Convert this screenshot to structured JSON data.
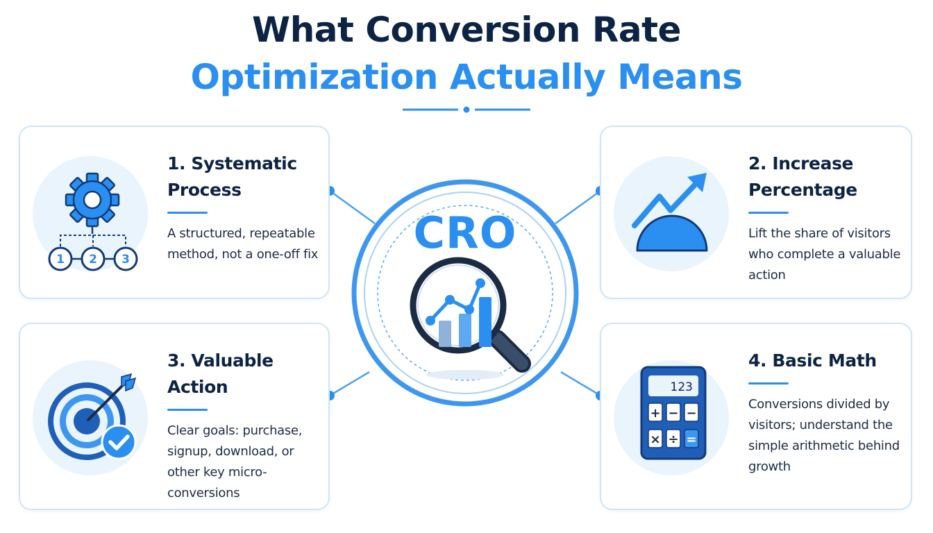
{
  "header": {
    "title_line1": "What Conversion Rate",
    "title_line2": "Optimization Actually Means"
  },
  "center": {
    "label": "CRO",
    "icon": "magnifying-glass-chart-icon"
  },
  "cards": [
    {
      "title": "1. Systematic Process",
      "description": "A structured, repeatable method, not a one-off fix",
      "icon": "gear-process-steps-icon",
      "icon_steps": [
        "1",
        "2",
        "3"
      ]
    },
    {
      "title": "2. Increase Percentage",
      "description": "Lift the share of visitors who complete a valuable action",
      "icon": "rising-trend-gauge-icon"
    },
    {
      "title": "3. Valuable Action",
      "description": "Clear goals: purchase, signup, download, or other key micro-conversions",
      "icon": "target-arrow-check-icon"
    },
    {
      "title": "4. Basic Math",
      "description": "Conversions divided by visitors; understand the simple arithmetic behind growth",
      "icon": "calculator-icon",
      "icon_display": "123",
      "icon_keys": [
        "+",
        "−",
        "−",
        "×",
        "÷",
        "="
      ]
    }
  ],
  "colors": {
    "navy": "#0d2344",
    "accent": "#2a8ff0",
    "card_border": "#cfe4f7",
    "icon_bg": "#eaf4fd"
  }
}
